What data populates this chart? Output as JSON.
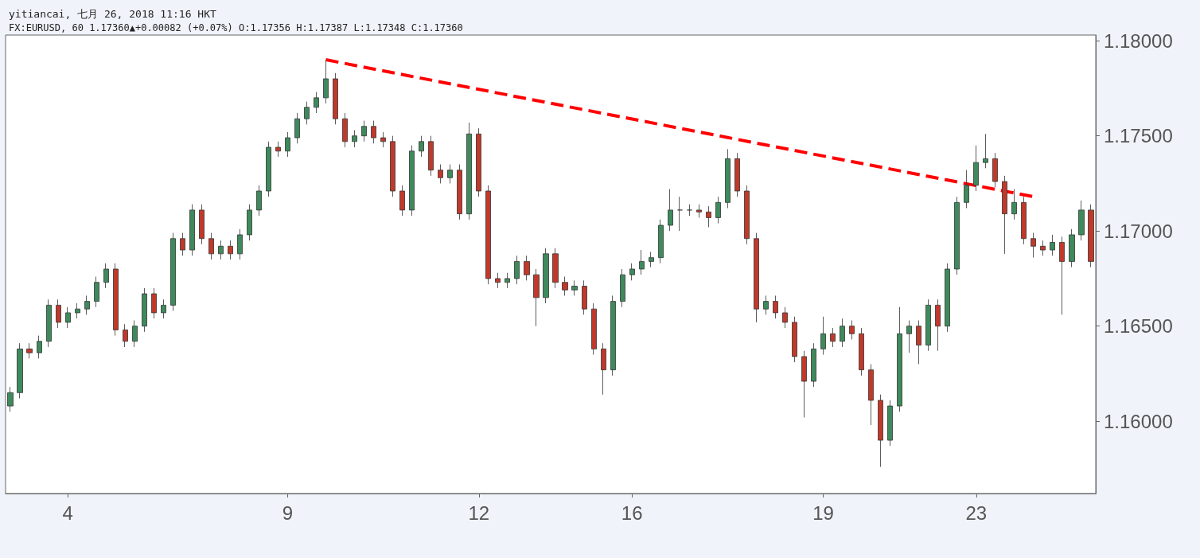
{
  "chart_data": {
    "type": "candlestick",
    "title": "yitiancai, 七月 26, 2018 11:16 HKT",
    "subtitle": "FX:EURUSD, 60 1.17360▲+0.00082 (+0.07%) O:1.17356 H:1.17387 L:1.17348 C:1.17360",
    "categories": [
      null,
      null,
      null,
      null,
      null,
      null,
      "4",
      null,
      null,
      null,
      null,
      null,
      null,
      null,
      null,
      null,
      null,
      null,
      null,
      null,
      null,
      null,
      null,
      null,
      null,
      null,
      null,
      null,
      null,
      "9",
      null,
      null,
      null,
      null,
      null,
      null,
      null,
      null,
      null,
      null,
      null,
      null,
      null,
      null,
      null,
      null,
      null,
      null,
      null,
      "12",
      null,
      null,
      null,
      null,
      null,
      null,
      null,
      null,
      null,
      null,
      null,
      null,
      null,
      null,
      null,
      "16",
      null,
      null,
      null,
      null,
      null,
      null,
      null,
      null,
      null,
      null,
      null,
      null,
      null,
      null,
      null,
      null,
      null,
      null,
      null,
      "19",
      null,
      null,
      null,
      null,
      null,
      null,
      null,
      null,
      null,
      null,
      null,
      null,
      null,
      null,
      null,
      "23",
      null,
      null,
      null,
      null,
      null,
      null,
      null,
      null,
      null,
      null,
      null,
      null
    ],
    "ohlc": [
      [
        1.1608,
        1.1618,
        1.1605,
        1.1615
      ],
      [
        1.1615,
        1.1641,
        1.1612,
        1.1638
      ],
      [
        1.1638,
        1.1641,
        1.1633,
        1.1636
      ],
      [
        1.1636,
        1.1645,
        1.1633,
        1.1642
      ],
      [
        1.1642,
        1.1664,
        1.1639,
        1.1661
      ],
      [
        1.1661,
        1.1664,
        1.1649,
        1.1652
      ],
      [
        1.1652,
        1.166,
        1.1649,
        1.1657
      ],
      [
        1.1657,
        1.1662,
        1.1654,
        1.1659
      ],
      [
        1.1659,
        1.1666,
        1.1656,
        1.1663
      ],
      [
        1.1663,
        1.1676,
        1.166,
        1.1673
      ],
      [
        1.1673,
        1.1683,
        1.167,
        1.168
      ],
      [
        1.168,
        1.1683,
        1.1645,
        1.1648
      ],
      [
        1.1648,
        1.1651,
        1.1639,
        1.1642
      ],
      [
        1.1642,
        1.1653,
        1.1639,
        1.165
      ],
      [
        1.165,
        1.167,
        1.1647,
        1.1667
      ],
      [
        1.1667,
        1.167,
        1.1654,
        1.1657
      ],
      [
        1.1657,
        1.1664,
        1.1654,
        1.1661
      ],
      [
        1.1661,
        1.1699,
        1.1658,
        1.1696
      ],
      [
        1.1696,
        1.1699,
        1.1687,
        1.169
      ],
      [
        1.169,
        1.1714,
        1.1687,
        1.1711
      ],
      [
        1.1711,
        1.1714,
        1.1693,
        1.1696
      ],
      [
        1.1696,
        1.1699,
        1.1685,
        1.1688
      ],
      [
        1.1688,
        1.1695,
        1.1685,
        1.1692
      ],
      [
        1.1692,
        1.1695,
        1.1685,
        1.1688
      ],
      [
        1.1688,
        1.1701,
        1.1685,
        1.1698
      ],
      [
        1.1698,
        1.1714,
        1.1695,
        1.1711
      ],
      [
        1.1711,
        1.1724,
        1.1708,
        1.1721
      ],
      [
        1.1721,
        1.1747,
        1.1718,
        1.1744
      ],
      [
        1.1744,
        1.1747,
        1.1739,
        1.1742
      ],
      [
        1.1742,
        1.1752,
        1.1739,
        1.1749
      ],
      [
        1.1749,
        1.1762,
        1.1746,
        1.1759
      ],
      [
        1.1759,
        1.1768,
        1.1756,
        1.1765
      ],
      [
        1.1765,
        1.1773,
        1.1762,
        1.177
      ],
      [
        1.177,
        1.179,
        1.1767,
        1.178
      ],
      [
        1.178,
        1.1783,
        1.1756,
        1.1759
      ],
      [
        1.1759,
        1.1762,
        1.1744,
        1.1747
      ],
      [
        1.1747,
        1.1753,
        1.1744,
        1.175
      ],
      [
        1.175,
        1.1758,
        1.1747,
        1.1755
      ],
      [
        1.1755,
        1.1758,
        1.1746,
        1.1749
      ],
      [
        1.1749,
        1.1752,
        1.1744,
        1.1747
      ],
      [
        1.1747,
        1.175,
        1.1718,
        1.1721
      ],
      [
        1.1721,
        1.1724,
        1.1708,
        1.1711
      ],
      [
        1.1711,
        1.1745,
        1.1708,
        1.1742
      ],
      [
        1.1742,
        1.175,
        1.1739,
        1.1747
      ],
      [
        1.1747,
        1.175,
        1.1729,
        1.1732
      ],
      [
        1.1732,
        1.1735,
        1.1725,
        1.1728
      ],
      [
        1.1728,
        1.1735,
        1.1725,
        1.1732
      ],
      [
        1.1732,
        1.1735,
        1.1706,
        1.1709
      ],
      [
        1.1709,
        1.1757,
        1.1706,
        1.1751
      ],
      [
        1.1751,
        1.1754,
        1.1718,
        1.1721
      ],
      [
        1.1721,
        1.1724,
        1.1672,
        1.1675
      ],
      [
        1.1675,
        1.1678,
        1.167,
        1.1673
      ],
      [
        1.1673,
        1.1678,
        1.167,
        1.1675
      ],
      [
        1.1675,
        1.1687,
        1.1672,
        1.1684
      ],
      [
        1.1684,
        1.1687,
        1.1674,
        1.1677
      ],
      [
        1.1677,
        1.168,
        1.165,
        1.1665
      ],
      [
        1.1665,
        1.1691,
        1.1662,
        1.1688
      ],
      [
        1.1688,
        1.1691,
        1.167,
        1.1673
      ],
      [
        1.1673,
        1.1676,
        1.1666,
        1.1669
      ],
      [
        1.1669,
        1.1674,
        1.1666,
        1.1671
      ],
      [
        1.1671,
        1.1674,
        1.1656,
        1.1659
      ],
      [
        1.1659,
        1.1662,
        1.1635,
        1.1638
      ],
      [
        1.1638,
        1.1641,
        1.1614,
        1.1627
      ],
      [
        1.1627,
        1.1666,
        1.1624,
        1.1663
      ],
      [
        1.1663,
        1.168,
        1.166,
        1.1677
      ],
      [
        1.1677,
        1.1683,
        1.1674,
        1.168
      ],
      [
        1.168,
        1.169,
        1.1677,
        1.1684
      ],
      [
        1.1684,
        1.1689,
        1.1681,
        1.1686
      ],
      [
        1.1686,
        1.1706,
        1.1683,
        1.1703
      ],
      [
        1.1703,
        1.1722,
        1.17,
        1.1711
      ],
      [
        1.1711,
        1.1718,
        1.17,
        1.1711
      ],
      [
        1.1711,
        1.1714,
        1.1708,
        1.1711
      ],
      [
        1.1711,
        1.1714,
        1.1707,
        1.171
      ],
      [
        1.171,
        1.1713,
        1.1702,
        1.1707
      ],
      [
        1.1707,
        1.1718,
        1.1704,
        1.1715
      ],
      [
        1.1715,
        1.1743,
        1.1712,
        1.1738
      ],
      [
        1.1738,
        1.1741,
        1.1718,
        1.1721
      ],
      [
        1.1721,
        1.1724,
        1.1693,
        1.1696
      ],
      [
        1.1696,
        1.1699,
        1.1652,
        1.1659
      ],
      [
        1.1659,
        1.1666,
        1.1656,
        1.1663
      ],
      [
        1.1663,
        1.1666,
        1.1654,
        1.1657
      ],
      [
        1.1657,
        1.166,
        1.1649,
        1.1652
      ],
      [
        1.1652,
        1.1655,
        1.1631,
        1.1634
      ],
      [
        1.1634,
        1.1637,
        1.1602,
        1.1621
      ],
      [
        1.1621,
        1.1641,
        1.1618,
        1.1638
      ],
      [
        1.1638,
        1.1655,
        1.1635,
        1.1646
      ],
      [
        1.1646,
        1.1649,
        1.1639,
        1.1642
      ],
      [
        1.1642,
        1.1654,
        1.1639,
        1.165
      ],
      [
        1.165,
        1.1653,
        1.1643,
        1.1646
      ],
      [
        1.1646,
        1.1649,
        1.1624,
        1.1627
      ],
      [
        1.1627,
        1.163,
        1.1598,
        1.1611
      ],
      [
        1.1611,
        1.1614,
        1.1576,
        1.159
      ],
      [
        1.159,
        1.1611,
        1.1587,
        1.1608
      ],
      [
        1.1608,
        1.166,
        1.1605,
        1.1646
      ],
      [
        1.1646,
        1.1653,
        1.1636,
        1.165
      ],
      [
        1.165,
        1.1653,
        1.163,
        1.164
      ],
      [
        1.164,
        1.1664,
        1.1637,
        1.1661
      ],
      [
        1.1661,
        1.1664,
        1.1637,
        1.165
      ],
      [
        1.165,
        1.1683,
        1.1647,
        1.168
      ],
      [
        1.168,
        1.1718,
        1.1677,
        1.1715
      ],
      [
        1.1715,
        1.1732,
        1.1712,
        1.1724
      ],
      [
        1.1724,
        1.1745,
        1.1721,
        1.1736
      ],
      [
        1.1736,
        1.1751,
        1.1733,
        1.1738
      ],
      [
        1.1738,
        1.1741,
        1.1723,
        1.1726
      ],
      [
        1.1726,
        1.1729,
        1.1688,
        1.1709
      ],
      [
        1.1709,
        1.1722,
        1.1706,
        1.1715
      ],
      [
        1.1715,
        1.1718,
        1.1693,
        1.1696
      ],
      [
        1.1696,
        1.1699,
        1.1686,
        1.1692
      ],
      [
        1.1692,
        1.1695,
        1.1687,
        1.169
      ],
      [
        1.169,
        1.1698,
        1.1687,
        1.1694
      ],
      [
        1.1694,
        1.1697,
        1.1656,
        1.1684
      ],
      [
        1.1684,
        1.1701,
        1.1681,
        1.1698
      ],
      [
        1.1698,
        1.1716,
        1.1695,
        1.1711
      ],
      [
        1.1711,
        1.1714,
        1.1681,
        1.1684
      ]
    ],
    "series": [
      {
        "type": "line",
        "color": "#ff0000",
        "line_style": "dashed",
        "values": [
          null,
          null,
          null,
          null,
          null,
          null,
          null,
          null,
          null,
          null,
          null,
          null,
          null,
          null,
          null,
          null,
          null,
          null,
          null,
          null,
          null,
          null,
          null,
          null,
          null,
          null,
          null,
          null,
          null,
          null,
          null,
          null,
          null,
          1.179,
          null,
          null,
          null,
          null,
          null,
          null,
          null,
          null,
          null,
          null,
          null,
          null,
          null,
          null,
          null,
          null,
          null,
          null,
          null,
          null,
          null,
          null,
          null,
          null,
          null,
          null,
          null,
          null,
          null,
          null,
          null,
          null,
          null,
          null,
          null,
          null,
          null,
          null,
          null,
          null,
          null,
          null,
          null,
          null,
          null,
          null,
          null,
          null,
          null,
          null,
          null,
          null,
          null,
          null,
          null,
          null,
          null,
          null,
          null,
          null,
          null,
          null,
          null,
          null,
          null,
          null,
          null,
          null,
          null,
          null,
          null,
          null,
          null,
          1.1718,
          null,
          null,
          null,
          null,
          null,
          null
        ]
      }
    ],
    "ylim": [
      1.1562,
      1.1803
    ],
    "yticks": [
      {
        "value": 1.16,
        "label": "1.16000"
      },
      {
        "value": 1.165,
        "label": "1.16500"
      },
      {
        "value": 1.17,
        "label": "1.17000"
      },
      {
        "value": 1.175,
        "label": "1.17500"
      },
      {
        "value": 1.18,
        "label": "1.18000"
      }
    ],
    "grid": false,
    "marker": "none"
  }
}
